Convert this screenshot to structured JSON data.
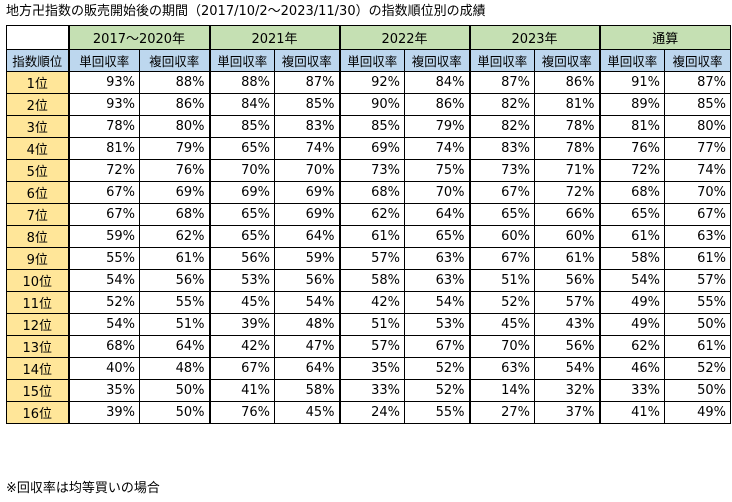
{
  "title": "地方卍指数の販売開始後の期間（2017/10/2〜2023/11/30）の指数順位別の成績",
  "note": "※回収率は均等買いの場合",
  "header": {
    "rank_label": "指数順位",
    "periods": [
      "2017〜2020年",
      "2021年",
      "2022年",
      "2023年",
      "通算"
    ],
    "win_label": "単回収率",
    "place_label": "複回収率"
  },
  "rows": [
    {
      "rank": "1位",
      "cells": [
        "93%",
        "88%",
        "88%",
        "87%",
        "92%",
        "84%",
        "87%",
        "86%",
        "91%",
        "87%"
      ]
    },
    {
      "rank": "2位",
      "cells": [
        "93%",
        "86%",
        "84%",
        "85%",
        "90%",
        "86%",
        "82%",
        "81%",
        "89%",
        "85%"
      ]
    },
    {
      "rank": "3位",
      "cells": [
        "78%",
        "80%",
        "85%",
        "83%",
        "85%",
        "79%",
        "82%",
        "78%",
        "81%",
        "80%"
      ]
    },
    {
      "rank": "4位",
      "cells": [
        "81%",
        "79%",
        "65%",
        "74%",
        "69%",
        "74%",
        "83%",
        "78%",
        "76%",
        "77%"
      ]
    },
    {
      "rank": "5位",
      "cells": [
        "72%",
        "76%",
        "70%",
        "70%",
        "73%",
        "75%",
        "73%",
        "71%",
        "72%",
        "74%"
      ]
    },
    {
      "rank": "6位",
      "cells": [
        "67%",
        "69%",
        "69%",
        "69%",
        "68%",
        "70%",
        "67%",
        "72%",
        "68%",
        "70%"
      ]
    },
    {
      "rank": "7位",
      "cells": [
        "67%",
        "68%",
        "65%",
        "69%",
        "62%",
        "64%",
        "65%",
        "66%",
        "65%",
        "67%"
      ]
    },
    {
      "rank": "8位",
      "cells": [
        "59%",
        "62%",
        "65%",
        "64%",
        "61%",
        "65%",
        "60%",
        "60%",
        "61%",
        "63%"
      ]
    },
    {
      "rank": "9位",
      "cells": [
        "55%",
        "61%",
        "56%",
        "59%",
        "57%",
        "63%",
        "67%",
        "61%",
        "58%",
        "61%"
      ]
    },
    {
      "rank": "10位",
      "cells": [
        "54%",
        "56%",
        "53%",
        "56%",
        "58%",
        "63%",
        "51%",
        "56%",
        "54%",
        "57%"
      ]
    },
    {
      "rank": "11位",
      "cells": [
        "52%",
        "55%",
        "45%",
        "54%",
        "42%",
        "54%",
        "52%",
        "57%",
        "49%",
        "55%"
      ]
    },
    {
      "rank": "12位",
      "cells": [
        "54%",
        "51%",
        "39%",
        "48%",
        "51%",
        "53%",
        "45%",
        "43%",
        "49%",
        "50%"
      ]
    },
    {
      "rank": "13位",
      "cells": [
        "68%",
        "64%",
        "42%",
        "47%",
        "57%",
        "67%",
        "70%",
        "56%",
        "62%",
        "61%"
      ]
    },
    {
      "rank": "14位",
      "cells": [
        "40%",
        "48%",
        "67%",
        "64%",
        "35%",
        "52%",
        "63%",
        "54%",
        "46%",
        "52%"
      ]
    },
    {
      "rank": "15位",
      "cells": [
        "35%",
        "50%",
        "41%",
        "58%",
        "33%",
        "52%",
        "14%",
        "32%",
        "33%",
        "50%"
      ]
    },
    {
      "rank": "16位",
      "cells": [
        "39%",
        "50%",
        "76%",
        "45%",
        "24%",
        "55%",
        "27%",
        "37%",
        "41%",
        "49%"
      ]
    }
  ]
}
